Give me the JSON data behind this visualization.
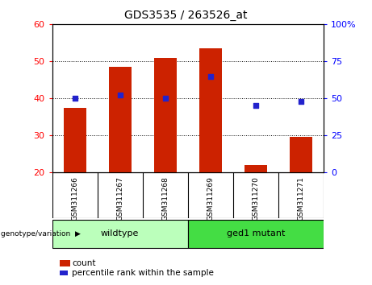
{
  "title": "GDS3535 / 263526_at",
  "samples": [
    "GSM311266",
    "GSM311267",
    "GSM311268",
    "GSM311269",
    "GSM311270",
    "GSM311271"
  ],
  "count_values": [
    37.5,
    48.5,
    51.0,
    53.5,
    22.0,
    29.5
  ],
  "percentile_values": [
    50,
    52,
    50,
    65,
    45,
    48
  ],
  "ylim_left": [
    20,
    60
  ],
  "ylim_right": [
    0,
    100
  ],
  "yticks_left": [
    20,
    30,
    40,
    50,
    60
  ],
  "yticks_right": [
    0,
    25,
    50,
    75,
    100
  ],
  "bar_color": "#cc2200",
  "dot_color": "#2222cc",
  "bar_bottom": 20,
  "bar_width": 0.5,
  "groups": [
    {
      "label": "wildtype",
      "indices": [
        0,
        1,
        2
      ],
      "color": "#bbffbb"
    },
    {
      "label": "ged1 mutant",
      "indices": [
        3,
        4,
        5
      ],
      "color": "#44dd44"
    }
  ],
  "group_header": "genotype/variation",
  "ticklabel_bg": "#cccccc",
  "legend_items": [
    {
      "label": "count",
      "color": "#cc2200"
    },
    {
      "label": "percentile rank within the sample",
      "color": "#2222cc"
    }
  ]
}
